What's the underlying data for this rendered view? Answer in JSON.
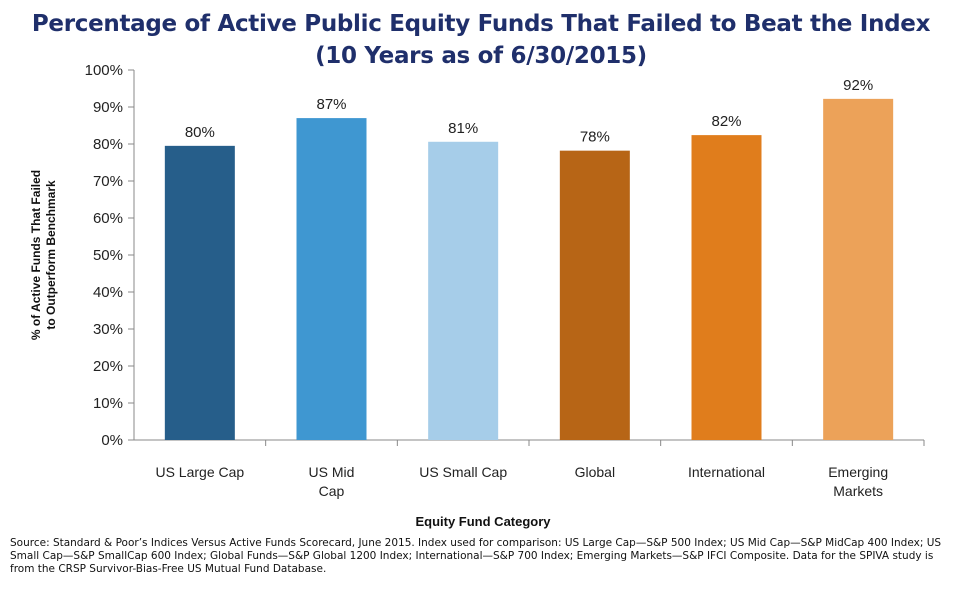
{
  "chart_data": {
    "type": "bar",
    "title": "Percentage of Active Public Equity Funds That Failed to Beat the Index",
    "subtitle": "(10 Years as of 6/30/2015)",
    "xlabel": "Equity Fund Category",
    "ylabel_line1": "% of Active Funds That Failed",
    "ylabel_line2": "to Outperform Benchmark",
    "ylim": [
      0,
      100
    ],
    "yticks": [
      0,
      10,
      20,
      30,
      40,
      50,
      60,
      70,
      80,
      90,
      100
    ],
    "ytick_labels": [
      "0%",
      "10%",
      "20%",
      "30%",
      "40%",
      "50%",
      "60%",
      "70%",
      "80%",
      "90%",
      "100%"
    ],
    "categories": [
      [
        "US Large Cap"
      ],
      [
        "US Mid",
        "Cap"
      ],
      [
        "US Small Cap"
      ],
      [
        "Global"
      ],
      [
        "International"
      ],
      [
        "Emerging",
        "Markets"
      ]
    ],
    "values": [
      79.5,
      87,
      80.6,
      78.2,
      82.4,
      92.2
    ],
    "data_labels": [
      "80%",
      "87%",
      "81%",
      "78%",
      "82%",
      "92%"
    ],
    "colors": [
      "#265e8a",
      "#3f97d1",
      "#a6cde9",
      "#b76516",
      "#e07d1c",
      "#eca259"
    ],
    "grid": false,
    "legend": "none"
  },
  "source_note": "Source: Standard & Poor’s Indices Versus Active Funds Scorecard, June 2015. Index used for comparison: US Large Cap—S&P 500 Index; US Mid Cap—S&P MidCap 400 Index; US Small Cap—S&P SmallCap 600 Index; Global Funds—S&P Global 1200 Index; International—S&P 700 Index; Emerging Markets—S&P IFCI Composite. Data for the SPIVA study is from the CRSP Survivor-Bias-Free US Mutual Fund Database."
}
